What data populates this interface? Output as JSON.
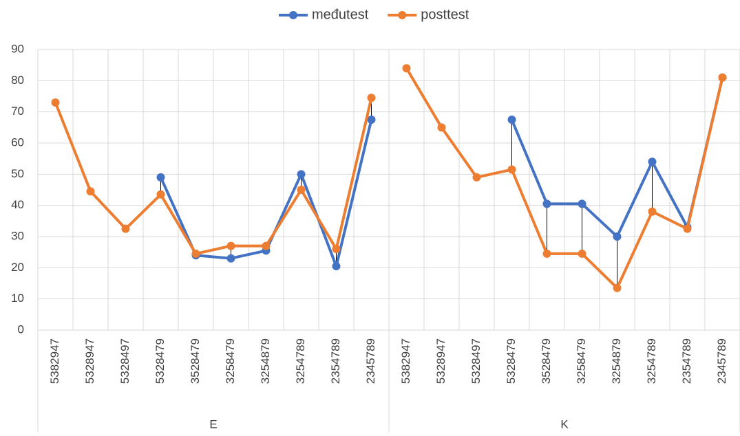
{
  "chart_data": {
    "type": "line",
    "categories": [
      "5382947",
      "5328947",
      "5328497",
      "5328479",
      "3528479",
      "3258479",
      "3254879",
      "3254789",
      "2354789",
      "2345789",
      "5382947",
      "5328947",
      "5328497",
      "5328479",
      "3528479",
      "3258479",
      "3254879",
      "3254789",
      "2354789",
      "2345789"
    ],
    "groups": [
      "E",
      "K"
    ],
    "series": [
      {
        "name": "međutest",
        "color": "#4472c4",
        "values": [
          null,
          null,
          null,
          49,
          24,
          23,
          25.5,
          50,
          20.5,
          67.5,
          null,
          null,
          null,
          67.5,
          40.5,
          40.5,
          30,
          54,
          33,
          81
        ]
      },
      {
        "name": "posttest",
        "color": "#ed7d31",
        "values": [
          73,
          44.5,
          32.5,
          43.5,
          24.5,
          27,
          27,
          45,
          26,
          74.5,
          84,
          65,
          49,
          51.5,
          24.5,
          24.5,
          13.5,
          38,
          32.5,
          81
        ]
      }
    ],
    "ylim": [
      0,
      90
    ],
    "yticks": [
      0,
      10,
      20,
      30,
      40,
      50,
      60,
      70,
      80,
      90
    ],
    "grid": true,
    "legend": "top",
    "drop_lines": true
  }
}
